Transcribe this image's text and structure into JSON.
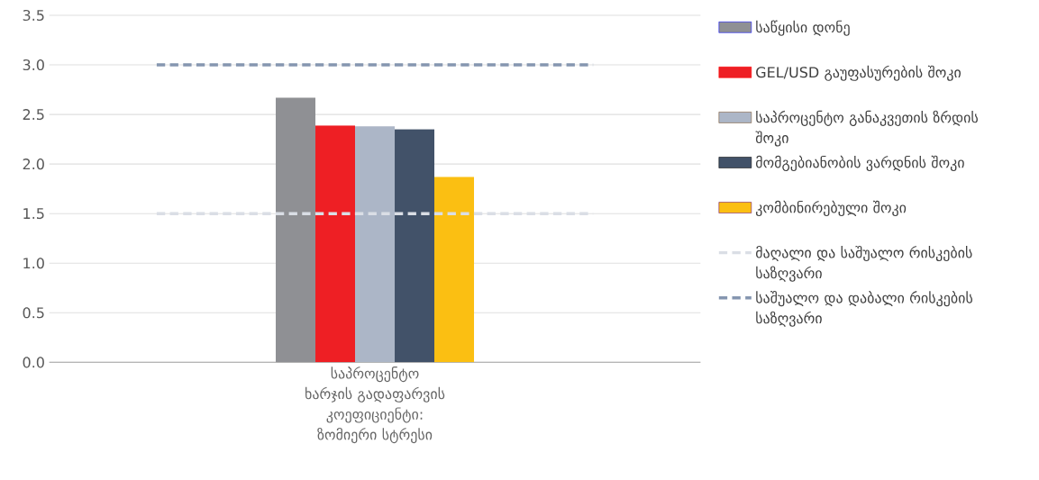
{
  "chart_data": {
    "type": "bar",
    "categories": [
      "საპროცენტო ხარჯის გადაფარვის კოეფიციენტი: ზომიერი სტრესი"
    ],
    "series": [
      {
        "name": "საწყისი დონე",
        "color": "#8f9094",
        "values": [
          2.67
        ]
      },
      {
        "name": "GEL/USD გაუფასურების შოკი",
        "color": "#ee1f24",
        "values": [
          2.39
        ]
      },
      {
        "name": "საპროცენტო განაკვეთის ზრდის შოკი",
        "color": "#acb6c7",
        "values": [
          2.38
        ]
      },
      {
        "name": "მომგებიანობის ვარდნის შოკი",
        "color": "#425269",
        "values": [
          2.35
        ]
      },
      {
        "name": "კომბინირებული შოკი",
        "color": "#fbbf12",
        "values": [
          1.87
        ]
      }
    ],
    "ref_lines": [
      {
        "axis": "y",
        "value": 1.5,
        "label": "მაღალი და საშუალო რისკების საზღვარი",
        "color": "#dadee5",
        "line_style": "dashed"
      },
      {
        "axis": "y",
        "value": 3.0,
        "label": "საშუალო და დაბალი რისკების საზღვარი",
        "color": "#8596b0",
        "line_style": "dashed"
      }
    ],
    "ylim": [
      0,
      3.5
    ],
    "yticks": [
      {
        "value": 0,
        "label": "0.0"
      },
      {
        "value": 0.5,
        "label": "0.5"
      },
      {
        "value": 1,
        "label": "1.0"
      },
      {
        "value": 1.5,
        "label": "1.5"
      },
      {
        "value": 2,
        "label": "2.0"
      },
      {
        "value": 2.5,
        "label": "2.5"
      },
      {
        "value": 3,
        "label": "3.0"
      },
      {
        "value": 3.5,
        "label": "3.5"
      }
    ],
    "grid": "y",
    "legend": "right"
  }
}
